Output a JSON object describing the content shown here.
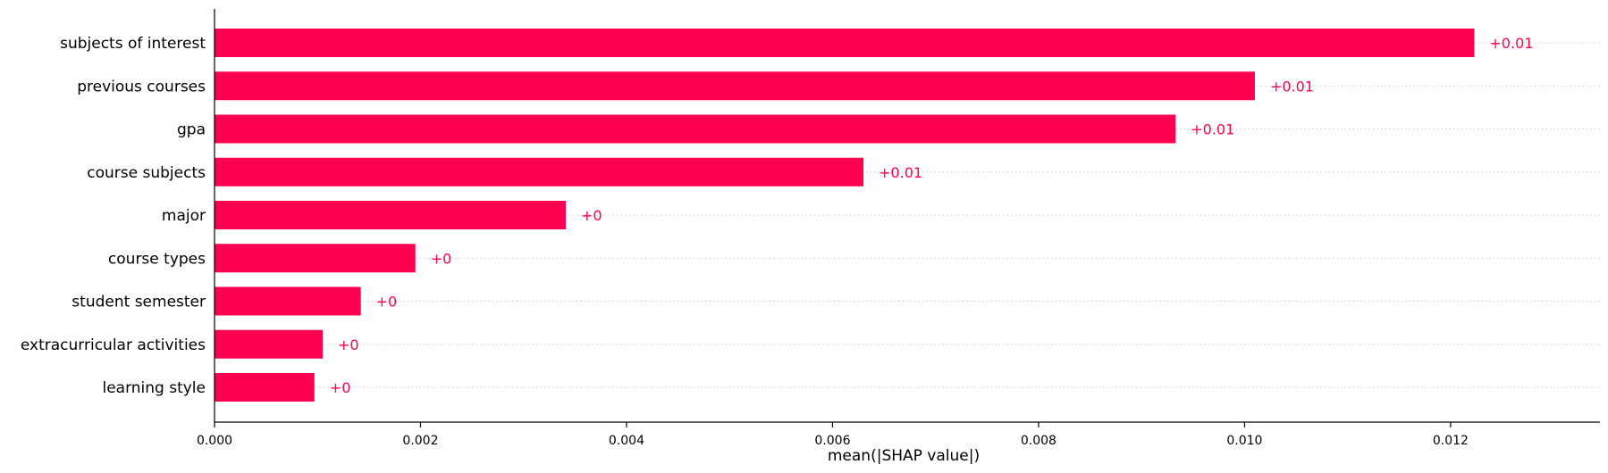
{
  "chart_data": {
    "type": "bar",
    "orientation": "horizontal",
    "title": "",
    "xlabel": "mean(|SHAP value|)",
    "ylabel": "",
    "xlim": [
      0,
      0.01345
    ],
    "x_ticks": [
      0.0,
      0.002,
      0.004,
      0.006,
      0.008,
      0.01,
      0.012
    ],
    "x_tick_labels": [
      "0.000",
      "0.002",
      "0.004",
      "0.006",
      "0.008",
      "0.010",
      "0.012"
    ],
    "categories": [
      "subjects of interest",
      "previous courses",
      "gpa",
      "course subjects",
      "major",
      "course types",
      "student semester",
      "extracurricular activities",
      "learning style"
    ],
    "values": [
      0.01223,
      0.0101,
      0.00933,
      0.0063,
      0.00341,
      0.00195,
      0.00142,
      0.00105,
      0.00097
    ],
    "data_labels": [
      "+0.01",
      "+0.01",
      "+0.01",
      "+0.01",
      "+0",
      "+0",
      "+0",
      "+0",
      "+0"
    ],
    "grid": "dotted horizontal lines per bar",
    "colors": {
      "bar": "#ff0051",
      "label": "#ff0051",
      "grid": "#cccccc",
      "axis": "#000000"
    }
  }
}
